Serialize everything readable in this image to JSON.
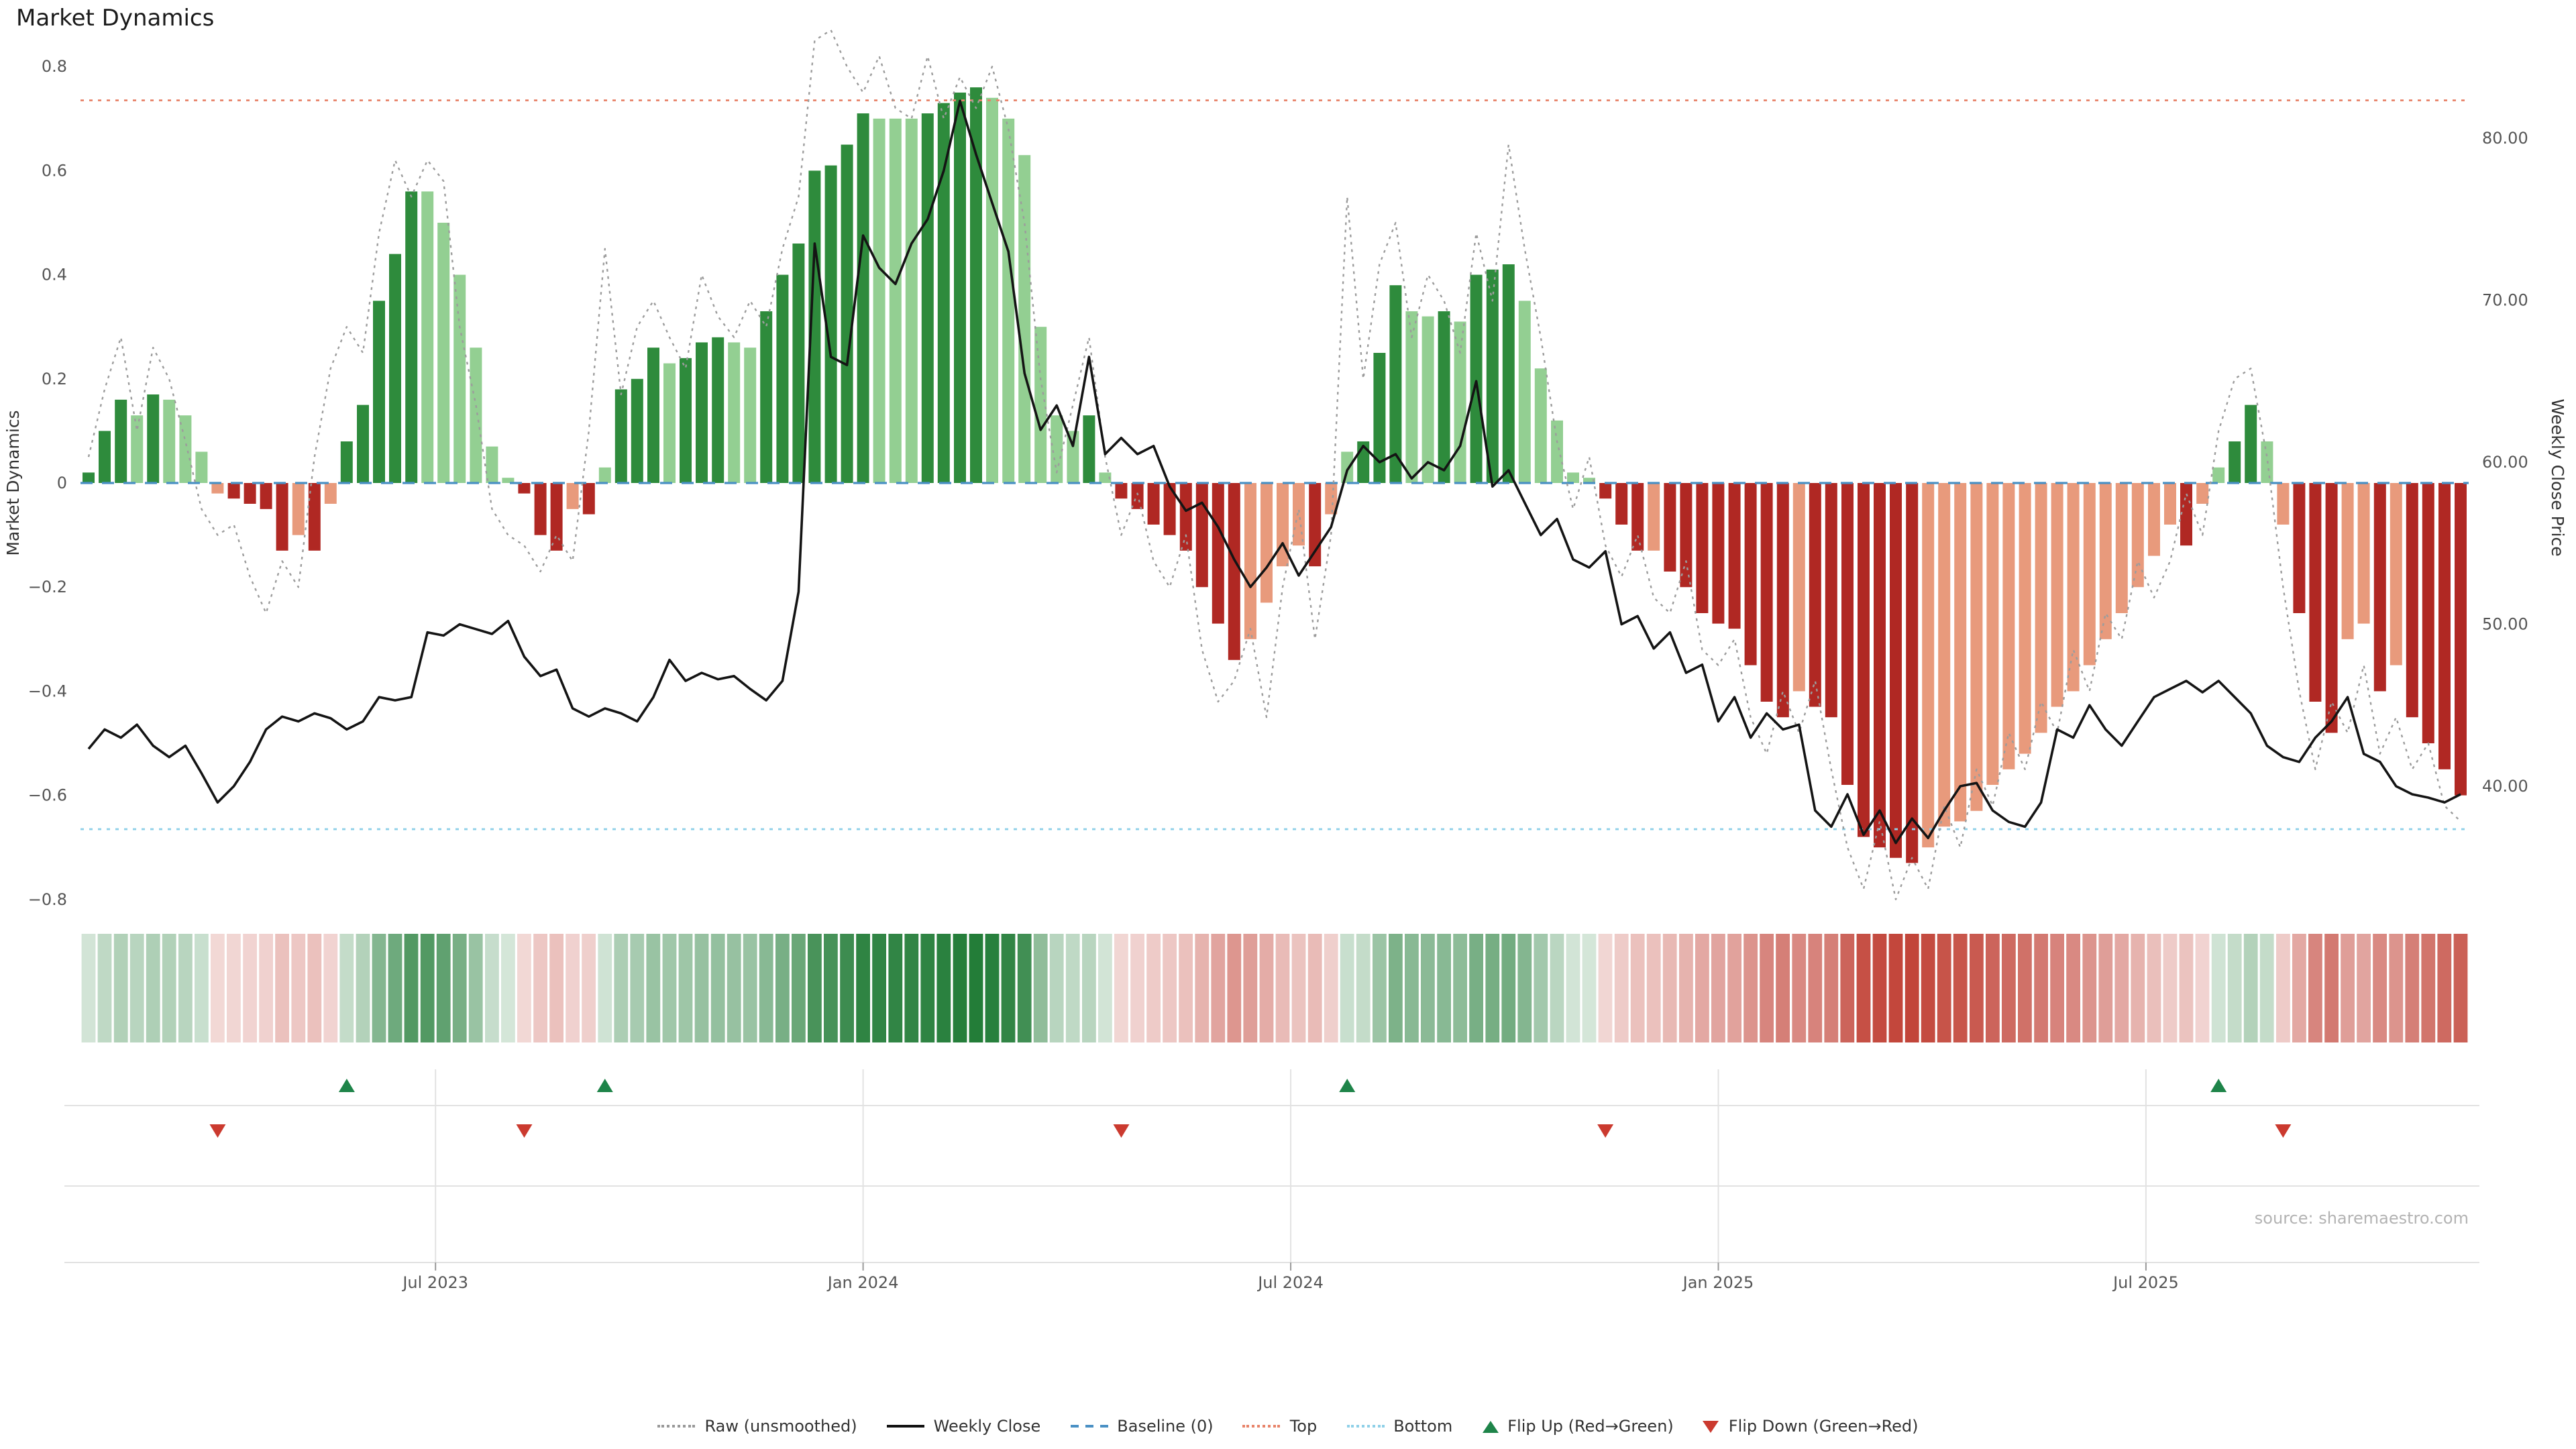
{
  "title": "Market Dynamics",
  "source": "source: sharemaestro.com",
  "axes": {
    "left": {
      "title": "Market Dynamics",
      "ticks": [
        "0.8",
        "0.6",
        "0.4",
        "0.2",
        "0",
        "−0.2",
        "−0.4",
        "−0.6",
        "−0.8"
      ],
      "tick_values": [
        0.8,
        0.6,
        0.4,
        0.2,
        0,
        -0.2,
        -0.4,
        -0.6,
        -0.8
      ]
    },
    "right": {
      "title": "Weekly Close Price",
      "ticks": [
        "80.00",
        "70.00",
        "60.00",
        "50.00",
        "40.00"
      ],
      "tick_values": [
        80,
        70,
        60,
        50,
        40
      ]
    },
    "x": {
      "ticks": [
        {
          "label": "Jul 2023",
          "week": 22.0
        },
        {
          "label": "Jan 2024",
          "week": 48.5
        },
        {
          "label": "Jul 2024",
          "week": 75.0
        },
        {
          "label": "Jan 2025",
          "week": 101.5
        },
        {
          "label": "Jul 2025",
          "week": 128.0
        }
      ]
    }
  },
  "legend": {
    "items": [
      {
        "key": "raw",
        "label": "Raw (unsmoothed)",
        "icon": "dotted-line-icon"
      },
      {
        "key": "weekly",
        "label": "Weekly Close",
        "icon": "solid-line-icon"
      },
      {
        "key": "baseline",
        "label": "Baseline (0)",
        "icon": "dashed-line-icon"
      },
      {
        "key": "top",
        "label": "Top",
        "icon": "dotted-line-icon"
      },
      {
        "key": "bottom",
        "label": "Bottom",
        "icon": "dotted-line-icon"
      },
      {
        "key": "flipup",
        "label": "Flip Up (Red→Green)",
        "icon": "flip-up-triangle-icon"
      },
      {
        "key": "flipdown",
        "label": "Flip Down (Green→Red)",
        "icon": "flip-down-triangle-icon"
      }
    ]
  },
  "colors": {
    "bar_green_strong": "#2e8b3c",
    "bar_green_weak": "#93cf92",
    "bar_red_strong": "#b02823",
    "bar_red_weak": "#e89a7c",
    "price_line": "#141414",
    "raw_line": "#9c9c9c",
    "baseline": "#4a90c4",
    "top_line": "#e8846a",
    "bottom_line": "#8fd0e8",
    "flip_up": "#1e8449",
    "flip_down": "#cb3a2f",
    "heat_green": "#1e7a34",
    "heat_red": "#bf3b2f",
    "grid": "#e2e2e2",
    "axis_text": "#555555"
  },
  "chart_data": {
    "type": "bar",
    "title": "Market Dynamics",
    "xlabel": "",
    "ylabel_left": "Market Dynamics",
    "ylabel_right": "Weekly Close Price",
    "ylim_left": [
      -0.8,
      0.8
    ],
    "ylim_right": [
      40,
      80
    ],
    "baseline": 0,
    "top": 0.735,
    "bottom": -0.665,
    "n_points": 148,
    "flip_up_weeks": [
      16,
      32,
      78,
      132
    ],
    "flip_down_weeks": [
      8,
      27,
      64,
      94,
      136
    ],
    "series": [
      {
        "name": "Market Dynamics (smoothed bars)",
        "type": "bar",
        "axis": "left",
        "values": [
          0.02,
          0.1,
          0.16,
          0.13,
          0.17,
          0.16,
          0.13,
          0.06,
          -0.02,
          -0.03,
          -0.04,
          -0.05,
          -0.13,
          -0.1,
          -0.13,
          -0.04,
          0.08,
          0.15,
          0.35,
          0.44,
          0.56,
          0.56,
          0.5,
          0.4,
          0.26,
          0.07,
          0.01,
          -0.02,
          -0.1,
          -0.13,
          -0.05,
          -0.06,
          0.03,
          0.18,
          0.2,
          0.26,
          0.23,
          0.24,
          0.27,
          0.28,
          0.27,
          0.26,
          0.33,
          0.4,
          0.46,
          0.6,
          0.61,
          0.65,
          0.71,
          0.7,
          0.7,
          0.7,
          0.71,
          0.73,
          0.75,
          0.76,
          0.74,
          0.7,
          0.63,
          0.3,
          0.13,
          0.1,
          0.13,
          0.02,
          -0.03,
          -0.05,
          -0.08,
          -0.1,
          -0.13,
          -0.2,
          -0.27,
          -0.34,
          -0.3,
          -0.23,
          -0.16,
          -0.12,
          -0.16,
          -0.06,
          0.06,
          0.08,
          0.25,
          0.38,
          0.33,
          0.32,
          0.33,
          0.31,
          0.4,
          0.41,
          0.42,
          0.35,
          0.22,
          0.12,
          0.02,
          0.01,
          -0.03,
          -0.08,
          -0.13,
          -0.13,
          -0.17,
          -0.2,
          -0.25,
          -0.27,
          -0.28,
          -0.35,
          -0.42,
          -0.45,
          -0.4,
          -0.43,
          -0.45,
          -0.58,
          -0.68,
          -0.7,
          -0.72,
          -0.73,
          -0.7,
          -0.66,
          -0.65,
          -0.63,
          -0.58,
          -0.55,
          -0.52,
          -0.48,
          -0.43,
          -0.4,
          -0.35,
          -0.3,
          -0.25,
          -0.2,
          -0.14,
          -0.08,
          -0.12,
          -0.04,
          0.03,
          0.08,
          0.15,
          0.08,
          -0.08,
          -0.25,
          -0.42,
          -0.48,
          -0.3,
          -0.27,
          -0.4,
          -0.35,
          -0.45,
          -0.5,
          -0.55,
          -0.6
        ]
      },
      {
        "name": "Raw (unsmoothed)",
        "type": "line",
        "axis": "left",
        "values": [
          0.05,
          0.18,
          0.28,
          0.1,
          0.26,
          0.2,
          0.08,
          -0.05,
          -0.1,
          -0.08,
          -0.18,
          -0.25,
          -0.15,
          -0.2,
          0.05,
          0.22,
          0.3,
          0.25,
          0.48,
          0.62,
          0.55,
          0.62,
          0.58,
          0.3,
          0.15,
          -0.05,
          -0.1,
          -0.12,
          -0.17,
          -0.1,
          -0.15,
          0.1,
          0.45,
          0.17,
          0.3,
          0.35,
          0.28,
          0.22,
          0.4,
          0.32,
          0.28,
          0.35,
          0.3,
          0.45,
          0.55,
          0.85,
          0.87,
          0.8,
          0.75,
          0.82,
          0.72,
          0.7,
          0.82,
          0.7,
          0.78,
          0.72,
          0.8,
          0.68,
          0.5,
          0.2,
          0.02,
          0.15,
          0.28,
          0.05,
          -0.1,
          -0.02,
          -0.15,
          -0.2,
          -0.1,
          -0.32,
          -0.42,
          -0.38,
          -0.28,
          -0.45,
          -0.2,
          -0.05,
          -0.3,
          -0.1,
          0.55,
          0.2,
          0.42,
          0.5,
          0.28,
          0.4,
          0.35,
          0.25,
          0.48,
          0.35,
          0.65,
          0.45,
          0.28,
          0.08,
          -0.05,
          0.05,
          -0.12,
          -0.18,
          -0.1,
          -0.22,
          -0.25,
          -0.15,
          -0.32,
          -0.35,
          -0.3,
          -0.45,
          -0.52,
          -0.4,
          -0.48,
          -0.38,
          -0.55,
          -0.7,
          -0.78,
          -0.65,
          -0.8,
          -0.72,
          -0.78,
          -0.62,
          -0.7,
          -0.55,
          -0.62,
          -0.48,
          -0.55,
          -0.42,
          -0.48,
          -0.32,
          -0.4,
          -0.25,
          -0.3,
          -0.15,
          -0.22,
          -0.15,
          -0.02,
          -0.1,
          0.1,
          0.2,
          0.22,
          0.05,
          -0.2,
          -0.4,
          -0.55,
          -0.42,
          -0.48,
          -0.35,
          -0.52,
          -0.45,
          -0.55,
          -0.5,
          -0.62,
          -0.65
        ]
      },
      {
        "name": "Weekly Close",
        "type": "line",
        "axis": "right",
        "values": [
          42.3,
          43.5,
          43.0,
          43.8,
          42.5,
          41.8,
          42.5,
          40.8,
          39.0,
          40.0,
          41.5,
          43.5,
          44.3,
          44.0,
          44.5,
          44.2,
          43.5,
          44.0,
          45.5,
          45.3,
          45.5,
          49.5,
          49.3,
          50.0,
          49.7,
          49.4,
          50.2,
          48.0,
          46.8,
          47.2,
          44.8,
          44.3,
          44.8,
          44.5,
          44.0,
          45.5,
          47.8,
          46.5,
          47.0,
          46.6,
          46.8,
          46.0,
          45.3,
          46.5,
          52.0,
          73.5,
          66.5,
          66.0,
          74.0,
          72.0,
          71.0,
          73.5,
          75.0,
          78.0,
          82.3,
          79.0,
          76.0,
          73.0,
          65.5,
          62.0,
          63.5,
          61.0,
          66.5,
          60.5,
          61.5,
          60.5,
          61.0,
          58.5,
          57.0,
          57.5,
          56.0,
          54.0,
          52.3,
          53.5,
          55.0,
          53.0,
          54.5,
          56.0,
          59.5,
          61.0,
          60.0,
          60.5,
          59.0,
          60.0,
          59.5,
          61.0,
          65.0,
          58.5,
          59.5,
          57.5,
          55.5,
          56.5,
          54.0,
          53.5,
          54.5,
          50.0,
          50.5,
          48.5,
          49.5,
          47.0,
          47.5,
          44.0,
          45.5,
          43.0,
          44.5,
          43.5,
          43.8,
          38.5,
          37.5,
          39.5,
          37.0,
          38.5,
          36.5,
          38.0,
          36.8,
          38.5,
          40.0,
          40.2,
          38.5,
          37.8,
          37.5,
          39.0,
          43.5,
          43.0,
          45.0,
          43.5,
          42.5,
          44.0,
          45.5,
          46.0,
          46.5,
          45.8,
          46.5,
          45.5,
          44.5,
          42.5,
          41.8,
          41.5,
          43.0,
          44.0,
          45.5,
          42.0,
          41.5,
          40.0,
          39.5,
          39.3,
          39.0,
          39.5
        ]
      }
    ]
  }
}
